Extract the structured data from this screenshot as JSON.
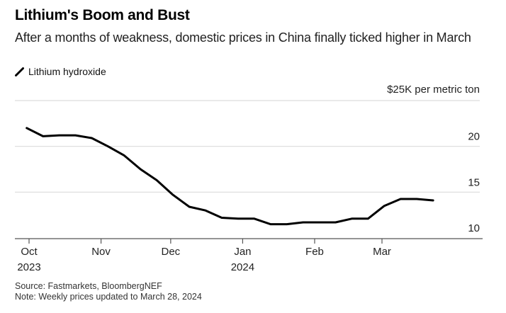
{
  "header": {
    "title": "Lithium's Boom and Bust",
    "subtitle": "After a months of weakness, domestic prices in China finally ticked higher in March"
  },
  "legend": {
    "label": "Lithium hydroxide",
    "icon": "line-swatch-icon"
  },
  "unit_label": "$25K per metric ton",
  "footer": {
    "source": "Source: Fastmarkets, BloombergNEF",
    "note": "Note: Weekly prices updated to March 28, 2024"
  },
  "chart_data": {
    "type": "line",
    "title": "Lithium's Boom and Bust",
    "subtitle": "After a months of weakness, domestic prices in China finally ticked higher in March",
    "xlabel": "",
    "ylabel": "$K per metric ton",
    "ylim": [
      10,
      25
    ],
    "yticks": [
      {
        "value": 25,
        "label": "$25K per metric ton"
      },
      {
        "value": 20,
        "label": "20"
      },
      {
        "value": 15,
        "label": "15"
      },
      {
        "value": 10,
        "label": "10"
      }
    ],
    "xlim": [
      "2023-09-28",
      "2024-04-14"
    ],
    "xticks": [
      {
        "date": "2023-10-01",
        "label": "Oct",
        "sublabel": "2023"
      },
      {
        "date": "2023-11-01",
        "label": "Nov",
        "sublabel": ""
      },
      {
        "date": "2023-12-01",
        "label": "Dec",
        "sublabel": ""
      },
      {
        "date": "2024-01-01",
        "label": "Jan",
        "sublabel": "2024"
      },
      {
        "date": "2024-02-01",
        "label": "Feb",
        "sublabel": ""
      },
      {
        "date": "2024-03-01",
        "label": "Mar",
        "sublabel": ""
      }
    ],
    "grid": true,
    "legend_position": "top-left",
    "series": [
      {
        "name": "Lithium hydroxide",
        "color": "#000000",
        "points": [
          {
            "x": "2023-09-30",
            "y": 22.0
          },
          {
            "x": "2023-10-07",
            "y": 21.1
          },
          {
            "x": "2023-10-14",
            "y": 21.2
          },
          {
            "x": "2023-10-21",
            "y": 21.2
          },
          {
            "x": "2023-10-28",
            "y": 20.9
          },
          {
            "x": "2023-11-04",
            "y": 20.0
          },
          {
            "x": "2023-11-11",
            "y": 19.0
          },
          {
            "x": "2023-11-18",
            "y": 17.5
          },
          {
            "x": "2023-11-25",
            "y": 16.3
          },
          {
            "x": "2023-12-02",
            "y": 14.7
          },
          {
            "x": "2023-12-09",
            "y": 13.4
          },
          {
            "x": "2023-12-16",
            "y": 13.0
          },
          {
            "x": "2023-12-23",
            "y": 12.2
          },
          {
            "x": "2023-12-30",
            "y": 12.1
          },
          {
            "x": "2024-01-06",
            "y": 12.1
          },
          {
            "x": "2024-01-13",
            "y": 11.5
          },
          {
            "x": "2024-01-20",
            "y": 11.5
          },
          {
            "x": "2024-01-27",
            "y": 11.7
          },
          {
            "x": "2024-02-03",
            "y": 11.7
          },
          {
            "x": "2024-02-10",
            "y": 11.7
          },
          {
            "x": "2024-02-17",
            "y": 12.1
          },
          {
            "x": "2024-02-24",
            "y": 12.1
          },
          {
            "x": "2024-03-02",
            "y": 13.5
          },
          {
            "x": "2024-03-09",
            "y": 14.25
          },
          {
            "x": "2024-03-16",
            "y": 14.25
          },
          {
            "x": "2024-03-23",
            "y": 14.1
          }
        ]
      }
    ]
  }
}
